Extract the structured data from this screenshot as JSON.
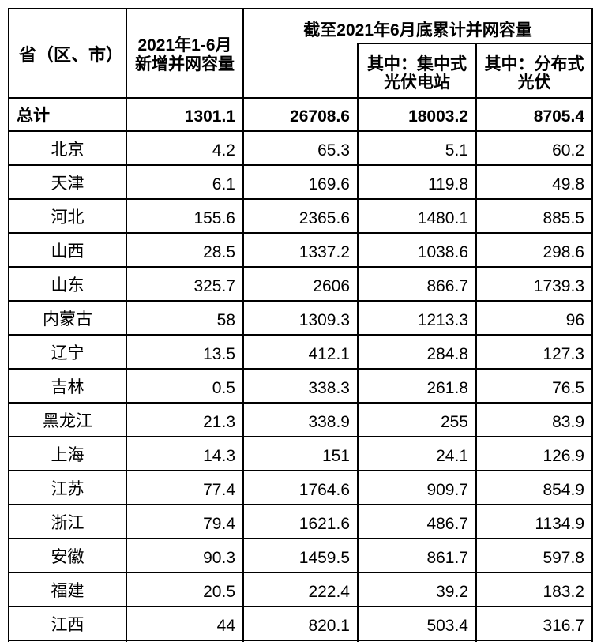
{
  "page": {
    "background_color": "#ffffff",
    "grid_line_color": "#000000",
    "text_color": "#000000"
  },
  "table": {
    "header": {
      "province": "省（区、市）",
      "new_capacity": {
        "line1": "2021年1-6月",
        "line2": "新增并网容量"
      },
      "cumulative_group": "截至2021年6月底累计并网容量",
      "centralized": {
        "line1": "其中：集中式",
        "line2": "光伏电站"
      },
      "distributed": {
        "line1": "其中：分布式",
        "line2": "光伏"
      }
    },
    "total_row": {
      "label": "总计",
      "values": [
        "1301.1",
        "26708.6",
        "18003.2",
        "8705.4"
      ]
    },
    "rows": [
      {
        "label": "北京",
        "values": [
          "4.2",
          "65.3",
          "5.1",
          "60.2"
        ]
      },
      {
        "label": "天津",
        "values": [
          "6.1",
          "169.6",
          "119.8",
          "49.8"
        ]
      },
      {
        "label": "河北",
        "values": [
          "155.6",
          "2365.6",
          "1480.1",
          "885.5"
        ]
      },
      {
        "label": "山西",
        "values": [
          "28.5",
          "1337.2",
          "1038.6",
          "298.6"
        ]
      },
      {
        "label": "山东",
        "values": [
          "325.7",
          "2606",
          "866.7",
          "1739.3"
        ]
      },
      {
        "label": "内蒙古",
        "values": [
          "58",
          "1309.3",
          "1213.3",
          "96"
        ]
      },
      {
        "label": "辽宁",
        "values": [
          "13.5",
          "412.1",
          "284.8",
          "127.3"
        ]
      },
      {
        "label": "吉林",
        "values": [
          "0.5",
          "338.3",
          "261.8",
          "76.5"
        ]
      },
      {
        "label": "黑龙江",
        "values": [
          "21.3",
          "338.9",
          "255",
          "83.9"
        ]
      },
      {
        "label": "上海",
        "values": [
          "14.3",
          "151",
          "24.1",
          "126.9"
        ]
      },
      {
        "label": "江苏",
        "values": [
          "77.4",
          "1764.6",
          "909.7",
          "854.9"
        ]
      },
      {
        "label": "浙江",
        "values": [
          "79.4",
          "1621.6",
          "486.7",
          "1134.9"
        ]
      },
      {
        "label": "安徽",
        "values": [
          "90.3",
          "1459.5",
          "861.7",
          "597.8"
        ]
      },
      {
        "label": "福建",
        "values": [
          "20.5",
          "222.4",
          "39.2",
          "183.2"
        ]
      },
      {
        "label": "江西",
        "values": [
          "44",
          "820.1",
          "503.4",
          "316.7"
        ]
      }
    ]
  }
}
